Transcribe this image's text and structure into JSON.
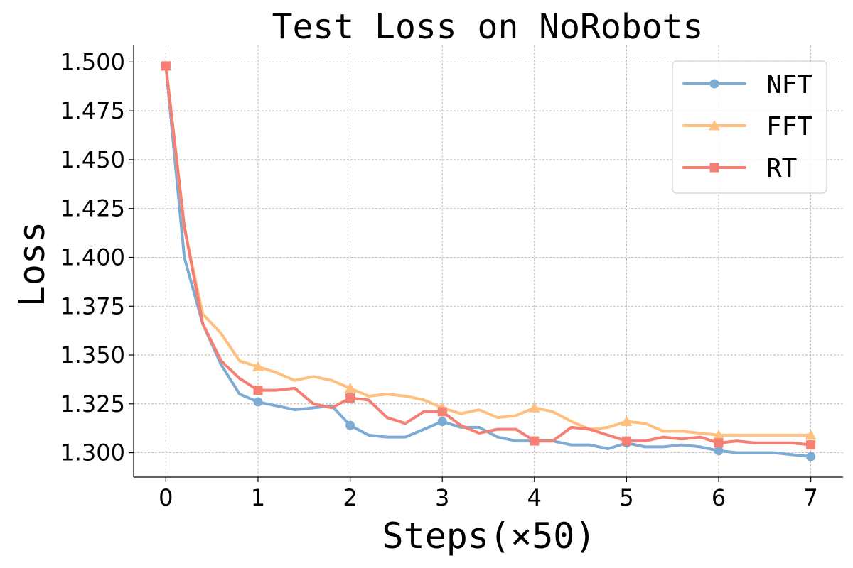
{
  "chart_data": {
    "type": "line",
    "title": "Test Loss on NoRobots",
    "xlabel": "Steps(×50)",
    "ylabel": "Loss",
    "xlim": [
      -0.35,
      7.35
    ],
    "ylim": [
      1.2875,
      1.5085
    ],
    "xticks": [
      0,
      1,
      2,
      3,
      4,
      5,
      6,
      7
    ],
    "yticks": [
      1.3,
      1.325,
      1.35,
      1.375,
      1.4,
      1.425,
      1.45,
      1.475,
      1.5
    ],
    "ytick_labels": [
      "1.300",
      "1.325",
      "1.350",
      "1.375",
      "1.400",
      "1.425",
      "1.450",
      "1.475",
      "1.500"
    ],
    "grid": true,
    "legend_position": "top-right",
    "x": [
      0,
      0.2,
      0.4,
      0.6,
      0.8,
      1.0,
      1.2,
      1.4,
      1.6,
      1.8,
      2.0,
      2.2,
      2.4,
      2.6,
      2.8,
      3.0,
      3.2,
      3.4,
      3.6,
      3.8,
      4.0,
      4.2,
      4.4,
      4.6,
      4.8,
      5.0,
      5.2,
      5.4,
      5.6,
      5.8,
      6.0,
      6.2,
      6.4,
      6.6,
      6.8,
      7.0
    ],
    "series": [
      {
        "name": "NFT",
        "color": "#7eabd3",
        "marker": "circle",
        "values": [
          1.498,
          1.4,
          1.366,
          1.345,
          1.33,
          1.326,
          1.324,
          1.322,
          1.323,
          1.324,
          1.314,
          1.309,
          1.308,
          1.308,
          1.312,
          1.316,
          1.313,
          1.313,
          1.308,
          1.306,
          1.306,
          1.306,
          1.304,
          1.304,
          1.302,
          1.305,
          1.303,
          1.303,
          1.304,
          1.303,
          1.301,
          1.3,
          1.3,
          1.3,
          1.299,
          1.298
        ]
      },
      {
        "name": "FFT",
        "color": "#ffbf7f",
        "marker": "triangle",
        "values": [
          1.498,
          1.415,
          1.371,
          1.361,
          1.347,
          1.344,
          1.341,
          1.337,
          1.339,
          1.337,
          1.333,
          1.329,
          1.33,
          1.329,
          1.327,
          1.323,
          1.32,
          1.322,
          1.318,
          1.319,
          1.323,
          1.321,
          1.316,
          1.312,
          1.313,
          1.316,
          1.315,
          1.311,
          1.311,
          1.31,
          1.309,
          1.309,
          1.309,
          1.309,
          1.309,
          1.309
        ]
      },
      {
        "name": "RT",
        "color": "#f47f72",
        "marker": "square",
        "values": [
          1.498,
          1.416,
          1.366,
          1.347,
          1.338,
          1.332,
          1.332,
          1.333,
          1.325,
          1.323,
          1.328,
          1.327,
          1.318,
          1.315,
          1.321,
          1.321,
          1.314,
          1.31,
          1.312,
          1.312,
          1.306,
          1.306,
          1.313,
          1.312,
          1.309,
          1.306,
          1.306,
          1.308,
          1.307,
          1.308,
          1.305,
          1.306,
          1.305,
          1.305,
          1.305,
          1.304
        ]
      }
    ]
  }
}
